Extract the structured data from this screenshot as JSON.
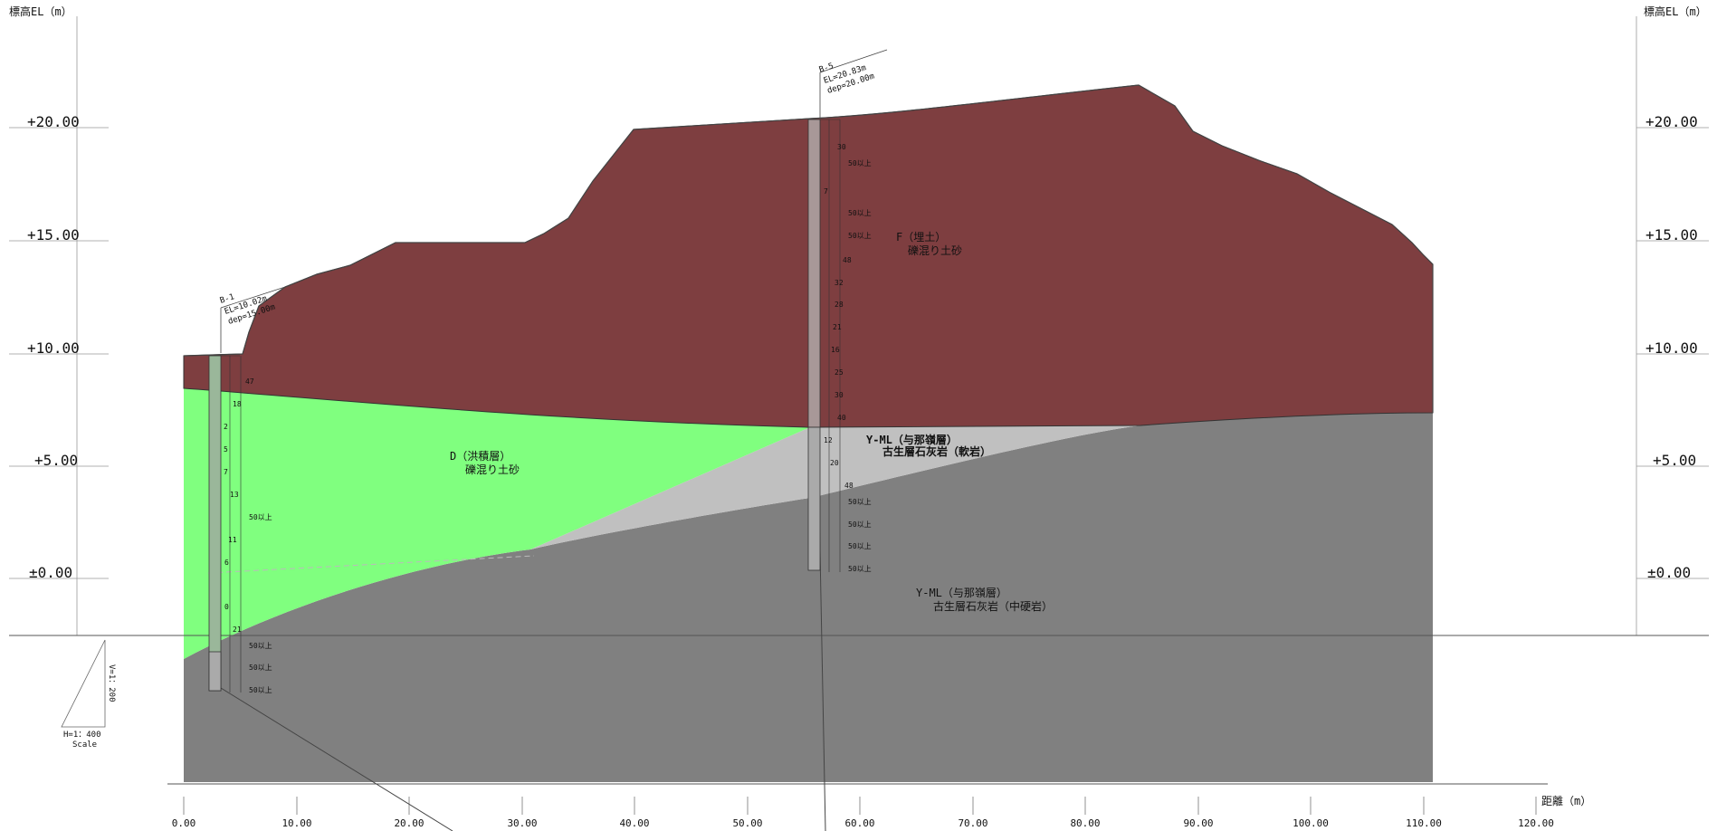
{
  "left_axis": {
    "title": "標高EL（m）",
    "ticks": [
      "+20.00",
      "+15.00",
      "+10.00",
      "+5.00",
      "±0.00"
    ]
  },
  "right_axis": {
    "title": "標高EL（m）",
    "ticks": [
      "+20.00",
      "+15.00",
      "+10.00",
      "+5.00",
      "±0.00"
    ]
  },
  "x_axis": {
    "title": "距離（m）",
    "ticks": [
      "0.00",
      "10.00",
      "20.00",
      "30.00",
      "40.00",
      "50.00",
      "60.00",
      "70.00",
      "80.00",
      "90.00",
      "100.00",
      "110.00",
      "120.00"
    ]
  },
  "colors": {
    "fill_soil": "#7e3e40",
    "diluvium": "#80ff7f",
    "weathered_limestone": "#c0c0c0",
    "medium_hard_limestone": "#808080"
  },
  "layers": {
    "fill": {
      "line1": "F（埋土）",
      "line2": "礫混り土砂"
    },
    "diluvium": {
      "line1": "D（洪積層）",
      "line2": "礫混り土砂"
    },
    "soft_rock": {
      "line1": "Y-ML（与那嶺層）",
      "line2": "古生層石灰岩（軟岩）"
    },
    "hard_rock": {
      "line1": "Y-ML（与那嶺層）",
      "line2": "古生層石灰岩（中硬岩）"
    }
  },
  "boreholes": {
    "b1": {
      "name": "B-1",
      "el": "EL=10.02m",
      "dep": "dep=15.00m"
    },
    "b5": {
      "name": "B-5",
      "el": "EL=20.83m",
      "dep": "dep=20.00m"
    }
  },
  "n_values": {
    "b1": [
      "47",
      "18",
      "2",
      "5",
      "7",
      "13",
      "50以上",
      "11",
      "6",
      "0",
      "21",
      "50以上",
      "50以上",
      "50以上"
    ],
    "b5": [
      "30",
      "50以上",
      "7",
      "50以上",
      "50以上",
      "48",
      "32",
      "28",
      "21",
      "16",
      "25",
      "30",
      "40",
      "12",
      "20",
      "48",
      "50以上",
      "50以上",
      "50以上",
      "50以上"
    ]
  },
  "scale": {
    "vertical": "V=1：200",
    "horizontal": "H=1：400",
    "label": "Scale"
  }
}
